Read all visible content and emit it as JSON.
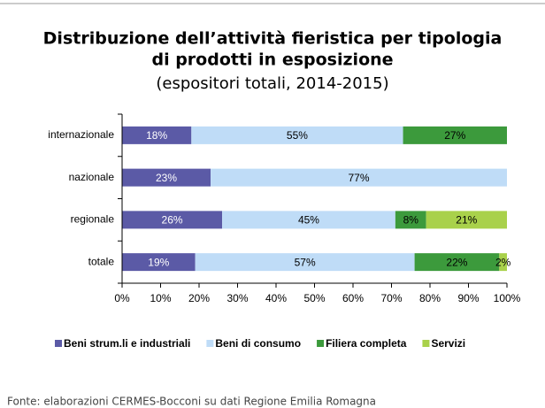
{
  "chart_data": {
    "type": "stacked-barh",
    "title": [
      "Distribuzione dell’attività fieristica per tipologia",
      "di prodotti in esposizione"
    ],
    "subtitle": "(espositori totali, 2014-2015)",
    "categories": [
      "internazionale",
      "nazionale",
      "regionale",
      "totale"
    ],
    "series": [
      {
        "name": "Beni strum.li e industriali",
        "color": "#5b5aa6",
        "label_color": "#ffffff",
        "values": [
          18,
          23,
          26,
          19
        ],
        "value_labels": [
          "18%",
          "23%",
          "26%",
          "19%"
        ]
      },
      {
        "name": "Beni di consumo",
        "color": "#bfdcf7",
        "label_color": "#000000",
        "values": [
          55,
          77,
          45,
          57
        ],
        "value_labels": [
          "55%",
          "77%",
          "45%",
          "57%"
        ]
      },
      {
        "name": "Filiera completa",
        "color": "#3c9a3c",
        "label_color": "#000000",
        "values": [
          27,
          null,
          8,
          22
        ],
        "value_labels": [
          "27%",
          null,
          "8%",
          "22%"
        ]
      },
      {
        "name": "Servizi",
        "color": "#a9d14b",
        "label_color": "#000000",
        "values": [
          null,
          null,
          21,
          2
        ],
        "value_labels": [
          null,
          null,
          "21%",
          "2%"
        ]
      }
    ],
    "xlim": [
      0,
      100
    ],
    "xticks": [
      {
        "value": 0,
        "label": "0%"
      },
      {
        "value": 10,
        "label": "10%"
      },
      {
        "value": 20,
        "label": "20%"
      },
      {
        "value": 30,
        "label": "30%"
      },
      {
        "value": 40,
        "label": "40%"
      },
      {
        "value": 50,
        "label": "50%"
      },
      {
        "value": 60,
        "label": "60%"
      },
      {
        "value": 70,
        "label": "70%"
      },
      {
        "value": 80,
        "label": "80%"
      },
      {
        "value": 90,
        "label": "90%"
      },
      {
        "value": 100,
        "label": "100%"
      }
    ],
    "legend": "bottom",
    "source": "Fonte: elaborazioni CERMES-Bocconi su dati Regione Emilia Romagna"
  }
}
